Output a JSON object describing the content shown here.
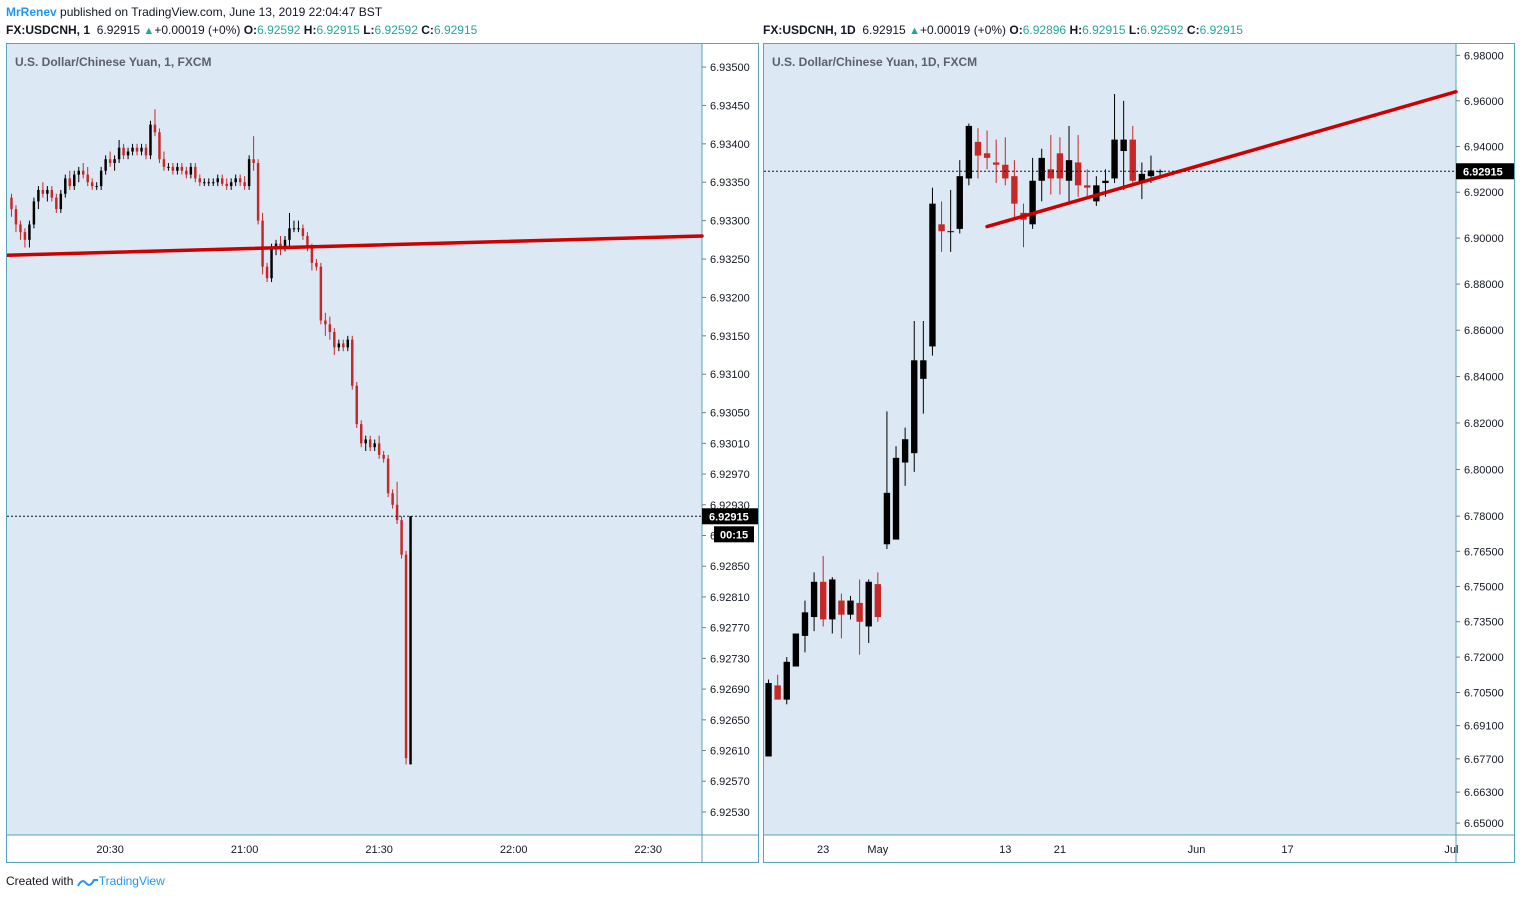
{
  "header": {
    "author": "MrRenev",
    "published": "published on TradingView.com, June 13, 2019 22:04:47 BST"
  },
  "legend_left": {
    "symbol": "FX:USDCNH, 1",
    "price": "6.92915",
    "change": "+0.00019 (+0%)",
    "o_label": "O:",
    "o": "6.92592",
    "h_label": "H:",
    "h": "6.92915",
    "l_label": "L:",
    "l": "6.92592",
    "c_label": "C:",
    "c": "6.92915"
  },
  "legend_right": {
    "symbol": "FX:USDCNH, 1D",
    "price": "6.92915",
    "change": "+0.00019 (+0%)",
    "o_label": "O:",
    "o": "6.92896",
    "h_label": "H:",
    "h": "6.92915",
    "l_label": "L:",
    "l": "6.92592",
    "c_label": "C:",
    "c": "6.92915"
  },
  "footer": {
    "created_with": "Created with",
    "brand": "TradingView"
  },
  "colors": {
    "bg": "#dce8f4",
    "up": "#000000",
    "down": "#c62828",
    "trendline": "#cc0000",
    "border": "#55a5b5",
    "accent": "#2196f3"
  },
  "chart_data": [
    {
      "type": "candlestick",
      "title": "U.S. Dollar/Chinese Yuan, 1, FXCM",
      "y_ticks": [
        "6.93500",
        "6.93450",
        "6.93400",
        "6.93350",
        "6.93300",
        "6.93250",
        "6.93200",
        "6.93150",
        "6.93100",
        "6.93050",
        "6.93010",
        "6.92970",
        "6.92930",
        "6.92890",
        "6.92850",
        "6.92810",
        "6.92770",
        "6.92730",
        "6.92690",
        "6.92650",
        "6.92610",
        "6.92570",
        "6.92530"
      ],
      "x_ticks": [
        "20:30",
        "21:00",
        "21:30",
        "22:00",
        "22:30"
      ],
      "x_ticks_minutes": [
        30,
        60,
        90,
        120,
        150
      ],
      "x_range_minutes": [
        7,
        162
      ],
      "ylim": [
        6.925,
        6.9353
      ],
      "last_price_label": "6.92915",
      "countdown_label": "00:15",
      "last_price": 6.92915,
      "trendline": [
        [
          7,
          6.93255
        ],
        [
          162,
          6.9328
        ]
      ],
      "candles": [
        [
          8,
          6.9333,
          6.93335,
          6.93305,
          6.93315
        ],
        [
          9,
          6.93315,
          6.9332,
          6.93285,
          6.93295
        ],
        [
          10,
          6.93295,
          6.933,
          6.93275,
          6.93285
        ],
        [
          11,
          6.93285,
          6.9329,
          6.93265,
          6.93275
        ],
        [
          12,
          6.93275,
          6.933,
          6.93265,
          6.93295
        ],
        [
          13,
          6.93295,
          6.9333,
          6.9329,
          6.93325
        ],
        [
          14,
          6.93325,
          6.93345,
          6.93315,
          6.9334
        ],
        [
          15,
          6.9334,
          6.9335,
          6.9333,
          6.93335
        ],
        [
          16,
          6.93335,
          6.93345,
          6.93325,
          6.9334
        ],
        [
          17,
          6.9334,
          6.93345,
          6.93325,
          6.9333
        ],
        [
          18,
          6.9333,
          6.93335,
          6.9331,
          6.93315
        ],
        [
          19,
          6.93315,
          6.9334,
          6.9331,
          6.93335
        ],
        [
          20,
          6.93335,
          6.9336,
          6.9333,
          6.93355
        ],
        [
          21,
          6.93355,
          6.93365,
          6.9334,
          6.93345
        ],
        [
          22,
          6.93345,
          6.93365,
          6.9334,
          6.9336
        ],
        [
          23,
          6.9336,
          6.9337,
          6.9335,
          6.93365
        ],
        [
          24,
          6.93365,
          6.93375,
          6.93355,
          6.9336
        ],
        [
          25,
          6.9336,
          6.9337,
          6.93345,
          6.9335
        ],
        [
          26,
          6.9335,
          6.93355,
          6.9334,
          6.93345
        ],
        [
          27,
          6.93345,
          6.9335,
          6.9334,
          6.93345
        ],
        [
          28,
          6.93345,
          6.9337,
          6.9334,
          6.93365
        ],
        [
          29,
          6.93365,
          6.93385,
          6.9336,
          6.9338
        ],
        [
          30,
          6.9338,
          6.9339,
          6.9337,
          6.93375
        ],
        [
          31,
          6.93375,
          6.93385,
          6.93365,
          6.9338
        ],
        [
          32,
          6.9338,
          6.93405,
          6.93375,
          6.93395
        ],
        [
          33,
          6.93395,
          6.934,
          6.9338,
          6.93385
        ],
        [
          34,
          6.93385,
          6.93395,
          6.9338,
          6.9339
        ],
        [
          35,
          6.9339,
          6.934,
          6.93385,
          6.93395
        ],
        [
          36,
          6.93395,
          6.934,
          6.93385,
          6.9339
        ],
        [
          37,
          6.9339,
          6.934,
          6.93385,
          6.93395
        ],
        [
          38,
          6.93395,
          6.934,
          6.9338,
          6.93385
        ],
        [
          39,
          6.93385,
          6.9343,
          6.9338,
          6.93425
        ],
        [
          40,
          6.93425,
          6.93445,
          6.9341,
          6.93415
        ],
        [
          41,
          6.93415,
          6.9342,
          6.93375,
          6.9338
        ],
        [
          42,
          6.9338,
          6.9339,
          6.93365,
          6.9337
        ],
        [
          43,
          6.9337,
          6.93375,
          6.93365,
          6.9337
        ],
        [
          44,
          6.9337,
          6.93375,
          6.9336,
          6.93365
        ],
        [
          45,
          6.93365,
          6.93375,
          6.9336,
          6.9337
        ],
        [
          46,
          6.9337,
          6.93375,
          6.9336,
          6.93365
        ],
        [
          47,
          6.93365,
          6.9337,
          6.93355,
          6.9336
        ],
        [
          48,
          6.9336,
          6.93375,
          6.93355,
          6.9337
        ],
        [
          49,
          6.9337,
          6.93375,
          6.9335,
          6.93355
        ],
        [
          50,
          6.93355,
          6.9336,
          6.93345,
          6.9335
        ],
        [
          51,
          6.9335,
          6.93355,
          6.93345,
          6.9335
        ],
        [
          52,
          6.9335,
          6.93355,
          6.93345,
          6.9335
        ],
        [
          53,
          6.9335,
          6.93355,
          6.93345,
          6.9335
        ],
        [
          54,
          6.9335,
          6.9336,
          6.93345,
          6.93355
        ],
        [
          55,
          6.93355,
          6.9336,
          6.93345,
          6.93348
        ],
        [
          56,
          6.93348,
          6.93355,
          6.9334,
          6.93345
        ],
        [
          57,
          6.93345,
          6.93355,
          6.9334,
          6.9335
        ],
        [
          58,
          6.9335,
          6.9336,
          6.93345,
          6.93355
        ],
        [
          59,
          6.93355,
          6.9336,
          6.93345,
          6.9335
        ],
        [
          60,
          6.9335,
          6.93358,
          6.9334,
          6.93345
        ],
        [
          61,
          6.93345,
          6.93385,
          6.9334,
          6.9338
        ],
        [
          62,
          6.9338,
          6.9341,
          6.93365,
          6.93375
        ],
        [
          63,
          6.93375,
          6.9338,
          6.93295,
          6.933
        ],
        [
          64,
          6.933,
          6.9331,
          6.9323,
          6.9324
        ],
        [
          65,
          6.9324,
          6.93245,
          6.9322,
          6.93225
        ],
        [
          66,
          6.93225,
          6.9327,
          6.9322,
          6.93265
        ],
        [
          67,
          6.93265,
          6.93275,
          6.93255,
          6.9327
        ],
        [
          68,
          6.9327,
          6.9328,
          6.93255,
          6.93265
        ],
        [
          69,
          6.93265,
          6.9328,
          6.9326,
          6.93275
        ],
        [
          70,
          6.93275,
          6.9331,
          6.93265,
          6.9329
        ],
        [
          71,
          6.9329,
          6.933,
          6.93285,
          6.9329
        ],
        [
          72,
          6.9329,
          6.933,
          6.93285,
          6.9329
        ],
        [
          73,
          6.9329,
          6.93295,
          6.93275,
          6.9328
        ],
        [
          74,
          6.9328,
          6.93285,
          6.9326,
          6.93265
        ],
        [
          75,
          6.93265,
          6.9327,
          6.93235,
          6.93245
        ],
        [
          76,
          6.93245,
          6.9325,
          6.93235,
          6.9324
        ],
        [
          77,
          6.9324,
          6.93245,
          6.93165,
          6.9317
        ],
        [
          78,
          6.9317,
          6.9318,
          6.9315,
          6.93165
        ],
        [
          79,
          6.93165,
          6.93175,
          6.93145,
          6.93155
        ],
        [
          80,
          6.93155,
          6.9316,
          6.93125,
          6.93135
        ],
        [
          81,
          6.93135,
          6.93145,
          6.9313,
          6.9314
        ],
        [
          82,
          6.9314,
          6.93145,
          6.9313,
          6.93135
        ],
        [
          83,
          6.93135,
          6.9315,
          6.9313,
          6.93145
        ],
        [
          84,
          6.93145,
          6.9315,
          6.9308,
          6.93085
        ],
        [
          85,
          6.93085,
          6.9309,
          6.9303,
          6.93035
        ],
        [
          86,
          6.93035,
          6.9304,
          6.93005,
          6.9301
        ],
        [
          87,
          6.9301,
          6.9302,
          6.93,
          6.93015
        ],
        [
          88,
          6.93015,
          6.9302,
          6.93,
          6.93005
        ],
        [
          89,
          6.93005,
          6.93015,
          6.93,
          6.9301
        ],
        [
          90,
          6.9301,
          6.9302,
          6.9299,
          6.92995
        ],
        [
          91,
          6.92995,
          6.93,
          6.92985,
          6.9299
        ],
        [
          92,
          6.9299,
          6.92995,
          6.9294,
          6.92945
        ],
        [
          93,
          6.92945,
          6.9295,
          6.92925,
          6.9293
        ],
        [
          94,
          6.9293,
          6.9296,
          6.92905,
          6.9291
        ],
        [
          95,
          6.9291,
          6.92915,
          6.9286,
          6.92865
        ],
        [
          96,
          6.92865,
          6.9287,
          6.92592,
          6.926
        ],
        [
          97,
          6.92592,
          6.92915,
          6.92592,
          6.92915
        ]
      ]
    },
    {
      "type": "candlestick",
      "title": "U.S. Dollar/Chinese Yuan, 1D, FXCM",
      "y_ticks": [
        "6.98000",
        "6.96000",
        "6.94000",
        "6.92000",
        "6.90000",
        "6.88000",
        "6.86000",
        "6.84000",
        "6.82000",
        "6.80000",
        "6.78000",
        "6.76500",
        "6.75000",
        "6.73500",
        "6.72000",
        "6.70500",
        "6.69100",
        "6.67700",
        "6.66300",
        "6.65000"
      ],
      "x_ticks": [
        "23",
        "May",
        "13",
        "21",
        "Jun",
        "17",
        "Jul"
      ],
      "x_ticks_day": [
        2,
        8,
        22,
        28,
        43,
        53,
        71
      ],
      "x_range_day": [
        -4.5,
        71.5
      ],
      "y_scale": "log",
      "ylim": [
        6.645,
        6.985
      ],
      "last_price_label": "6.92915",
      "last_price": 6.92915,
      "trendline": [
        [
          20,
          6.905
        ],
        [
          71.5,
          6.964
        ]
      ],
      "candles": [
        [
          -4,
          6.678,
          6.7105,
          6.678,
          6.709
        ],
        [
          -3,
          6.708,
          6.7125,
          6.704,
          6.702
        ],
        [
          -2,
          6.702,
          6.72,
          6.7,
          6.718
        ],
        [
          -1,
          6.716,
          6.73,
          6.716,
          6.73
        ],
        [
          0,
          6.729,
          6.744,
          6.722,
          6.739
        ],
        [
          1,
          6.737,
          6.756,
          6.731,
          6.752
        ],
        [
          2,
          6.752,
          6.763,
          6.733,
          6.736
        ],
        [
          3,
          6.736,
          6.754,
          6.73,
          6.753
        ],
        [
          4,
          6.744,
          6.747,
          6.728,
          6.738
        ],
        [
          5,
          6.738,
          6.746,
          6.736,
          6.744
        ],
        [
          6,
          6.743,
          6.753,
          6.721,
          6.735
        ],
        [
          7,
          6.733,
          6.753,
          6.726,
          6.752
        ],
        [
          8,
          6.751,
          6.756,
          6.735,
          6.737
        ],
        [
          9,
          6.768,
          6.825,
          6.766,
          6.79
        ],
        [
          10,
          6.77,
          6.81,
          6.77,
          6.805
        ],
        [
          11,
          6.803,
          6.818,
          6.793,
          6.813
        ],
        [
          12,
          6.807,
          6.864,
          6.799,
          6.847
        ],
        [
          13,
          6.839,
          6.864,
          6.824,
          6.847
        ],
        [
          14,
          6.853,
          6.922,
          6.849,
          6.915
        ],
        [
          15,
          6.906,
          6.916,
          6.894,
          6.903
        ],
        [
          16,
          6.903,
          6.921,
          6.894,
          6.903
        ],
        [
          17,
          6.904,
          6.934,
          6.902,
          6.927
        ],
        [
          18,
          6.926,
          6.95,
          6.923,
          6.949
        ],
        [
          19,
          6.942,
          6.948,
          6.926,
          6.936
        ],
        [
          20,
          6.937,
          6.947,
          6.93,
          6.935
        ],
        [
          21,
          6.933,
          6.943,
          6.924,
          6.932
        ],
        [
          22,
          6.932,
          6.944,
          6.923,
          6.926
        ],
        [
          23,
          6.927,
          6.934,
          6.909,
          6.915
        ],
        [
          24,
          6.911,
          6.915,
          6.896,
          6.908
        ],
        [
          25,
          6.906,
          6.935,
          6.904,
          6.925
        ],
        [
          26,
          6.925,
          6.939,
          6.916,
          6.935
        ],
        [
          27,
          6.93,
          6.945,
          6.919,
          6.926
        ],
        [
          28,
          6.937,
          6.944,
          6.919,
          6.926
        ],
        [
          29,
          6.925,
          6.949,
          6.916,
          6.934
        ],
        [
          30,
          6.933,
          6.945,
          6.918,
          6.923
        ],
        [
          31,
          6.923,
          6.93,
          6.918,
          6.922
        ],
        [
          32,
          6.916,
          6.927,
          6.914,
          6.923
        ],
        [
          33,
          6.924,
          6.93,
          6.918,
          6.925
        ],
        [
          34,
          6.926,
          6.963,
          6.924,
          6.943
        ],
        [
          35,
          6.938,
          6.96,
          6.921,
          6.943
        ],
        [
          36,
          6.943,
          6.949,
          6.923,
          6.925
        ],
        [
          37,
          6.924,
          6.933,
          6.917,
          6.928
        ],
        [
          38,
          6.927,
          6.936,
          6.924,
          6.9295
        ],
        [
          39,
          6.929,
          6.93,
          6.927,
          6.9292
        ]
      ]
    }
  ]
}
